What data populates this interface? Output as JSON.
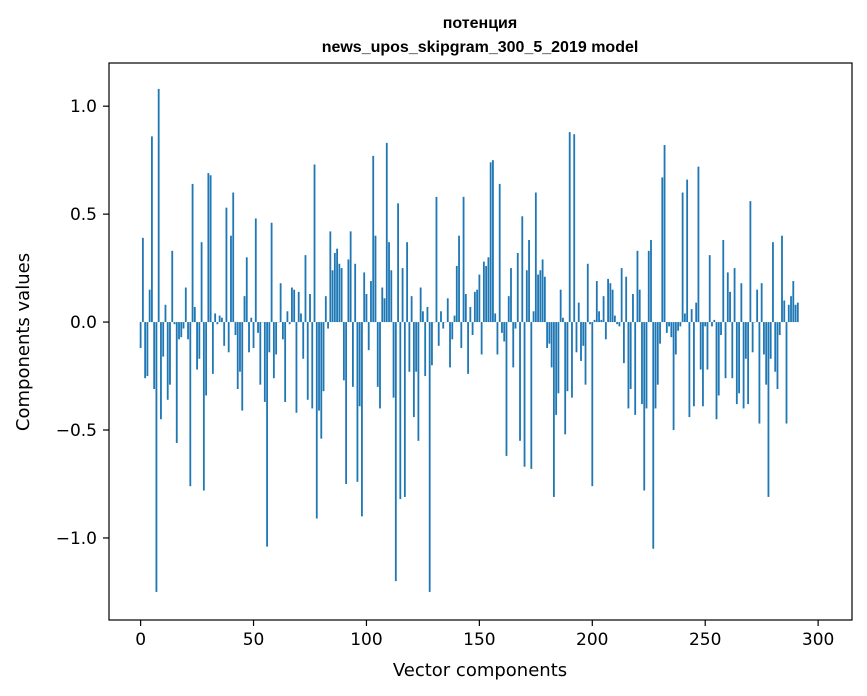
{
  "chart_data": {
    "type": "bar",
    "title_line1": "потенция",
    "title_line2": "news_upos_skipgram_300_5_2019 model",
    "xlabel": "Vector components",
    "ylabel": "Components values",
    "xlim": [
      -14,
      315
    ],
    "ylim": [
      -1.38,
      1.2
    ],
    "xticks": [
      0,
      50,
      100,
      150,
      200,
      250,
      300
    ],
    "xtick_labels": [
      "0",
      "50",
      "100",
      "150",
      "200",
      "250",
      "300"
    ],
    "yticks": [
      -1.0,
      -0.5,
      0.0,
      0.5,
      1.0
    ],
    "ytick_labels": [
      "−1.0",
      "−0.5",
      "0.0",
      "0.5",
      "1.0"
    ],
    "bar_color": "#1f77b4",
    "series": [
      {
        "values": [
          -0.12,
          0.39,
          -0.26,
          -0.25,
          0.15,
          0.86,
          -0.31,
          -1.25,
          1.08,
          -0.45,
          -0.16,
          0.08,
          -0.36,
          -0.29,
          0.33,
          -0.01,
          -0.56,
          -0.08,
          -0.07,
          -0.03,
          0.16,
          -0.08,
          -0.76,
          0.64,
          0.07,
          -0.22,
          -0.17,
          0.37,
          -0.78,
          -0.34,
          0.69,
          0.68,
          -0.24,
          0.04,
          -0.01,
          0.03,
          0.02,
          -0.11,
          0.53,
          -0.14,
          0.4,
          0.6,
          -0.06,
          -0.31,
          -0.23,
          -0.41,
          0.12,
          0.3,
          -0.14,
          0.02,
          -0.12,
          0.48,
          -0.05,
          -0.29,
          0.0,
          -0.37,
          -1.04,
          -0.14,
          0.46,
          -0.26,
          -0.15,
          0.0,
          0.18,
          -0.08,
          -0.37,
          0.05,
          -0.01,
          0.16,
          0.15,
          -0.42,
          0.14,
          0.04,
          -0.17,
          0.31,
          -0.36,
          0.13,
          -0.4,
          0.73,
          -0.91,
          -0.41,
          -0.54,
          -0.32,
          0.12,
          -0.03,
          0.42,
          0.24,
          0.32,
          0.34,
          0.27,
          0.25,
          -0.27,
          -0.75,
          0.29,
          0.42,
          -0.3,
          0.27,
          -0.74,
          -0.39,
          -0.9,
          0.23,
          0.13,
          -0.13,
          0.19,
          0.77,
          0.4,
          -0.3,
          -0.4,
          0.16,
          0.11,
          0.83,
          0.37,
          0.24,
          -0.35,
          -1.2,
          0.55,
          -0.82,
          0.25,
          -0.81,
          0.37,
          -0.23,
          0.12,
          -0.44,
          -0.23,
          -0.55,
          0.16,
          0.05,
          -0.25,
          0.07,
          -1.25,
          -0.2,
          0.0,
          0.58,
          -0.11,
          0.05,
          -0.03,
          0.0,
          0.11,
          -0.21,
          -0.08,
          0.03,
          0.26,
          0.4,
          -0.12,
          0.58,
          0.13,
          -0.24,
          0.07,
          -0.06,
          0.14,
          0.15,
          0.22,
          -0.15,
          0.28,
          0.26,
          0.3,
          0.74,
          0.75,
          0.04,
          -0.15,
          0.64,
          -0.05,
          -0.09,
          -0.62,
          0.12,
          0.25,
          -0.21,
          -0.03,
          0.32,
          -0.55,
          0.49,
          -0.67,
          0.24,
          0.38,
          -0.68,
          0.05,
          0.6,
          0.22,
          0.24,
          0.29,
          0.21,
          -0.12,
          -0.1,
          -0.21,
          -0.81,
          -0.43,
          -0.33,
          0.15,
          0.02,
          -0.52,
          -0.32,
          0.88,
          -0.35,
          0.87,
          -0.14,
          0.09,
          -0.18,
          -0.11,
          -0.29,
          0.27,
          -0.01,
          -0.76,
          0.01,
          0.19,
          0.05,
          0.01,
          0.12,
          -0.08,
          0.2,
          0.18,
          0.15,
          0.03,
          -0.01,
          -0.02,
          0.25,
          -0.19,
          0.21,
          -0.4,
          -0.31,
          0.13,
          -0.43,
          0.33,
          0.15,
          -0.38,
          -0.78,
          -0.4,
          0.33,
          0.38,
          -1.05,
          -0.4,
          -0.29,
          -0.1,
          0.67,
          0.82,
          -0.05,
          -0.02,
          -0.07,
          -0.5,
          -0.15,
          -0.04,
          -0.02,
          0.6,
          0.04,
          0.66,
          -0.44,
          0.06,
          -0.39,
          0.09,
          0.72,
          -0.22,
          -0.39,
          -0.02,
          -0.22,
          0.31,
          -0.02,
          0.01,
          -0.45,
          -0.34,
          -0.06,
          0.38,
          -0.26,
          0.23,
          0.14,
          -0.26,
          0.25,
          -0.38,
          -0.33,
          0.18,
          -0.4,
          -0.17,
          -0.38,
          0.56,
          -0.14,
          0.0,
          0.15,
          -0.47,
          0.18,
          -0.15,
          -0.29,
          -0.81,
          -0.17,
          0.37,
          -0.23,
          -0.31,
          -0.06,
          0.4,
          0.1,
          -0.47,
          0.08,
          0.12,
          0.19,
          0.08,
          0.09
        ]
      }
    ]
  }
}
